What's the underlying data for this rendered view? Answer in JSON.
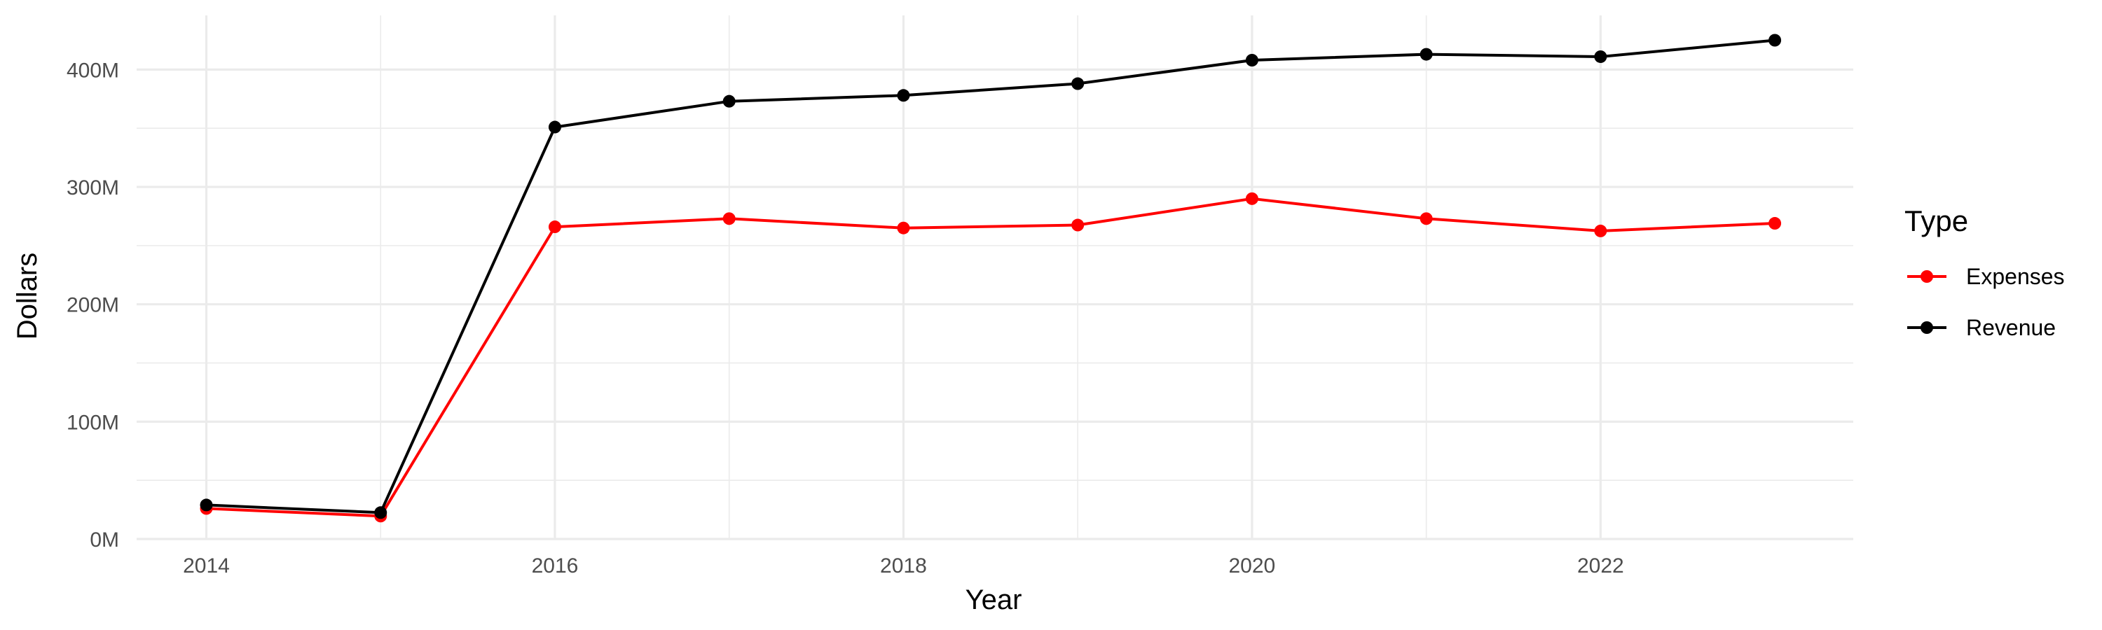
{
  "chart_data": {
    "type": "line",
    "xlabel": "Year",
    "ylabel": "Dollars",
    "x": [
      2014,
      2015,
      2016,
      2017,
      2018,
      2019,
      2020,
      2021,
      2022,
      2023
    ],
    "xlim": [
      2013.6,
      2023.45
    ],
    "ylim": [
      0,
      425000000
    ],
    "x_ticks": [
      {
        "value": 2014,
        "label": "2014"
      },
      {
        "value": 2016,
        "label": "2016"
      },
      {
        "value": 2018,
        "label": "2018"
      },
      {
        "value": 2020,
        "label": "2020"
      },
      {
        "value": 2022,
        "label": "2022"
      }
    ],
    "y_ticks": [
      {
        "value": 0,
        "label": "0M"
      },
      {
        "value": 100000000,
        "label": "100M"
      },
      {
        "value": 200000000,
        "label": "200M"
      },
      {
        "value": 300000000,
        "label": "300M"
      },
      {
        "value": 400000000,
        "label": "400M"
      }
    ],
    "grid": true,
    "legend": {
      "title": "Type",
      "position": "right"
    },
    "series": [
      {
        "name": "Expenses",
        "color": "#ff0000",
        "values": [
          26000000,
          19500000,
          266000000,
          273000000,
          265000000,
          267500000,
          290000000,
          273000000,
          262500000,
          269000000
        ]
      },
      {
        "name": "Revenue",
        "color": "#000000",
        "values": [
          29000000,
          22500000,
          351000000,
          373000000,
          378000000,
          388000000,
          408000000,
          413000000,
          411000000,
          425000000
        ]
      }
    ]
  }
}
